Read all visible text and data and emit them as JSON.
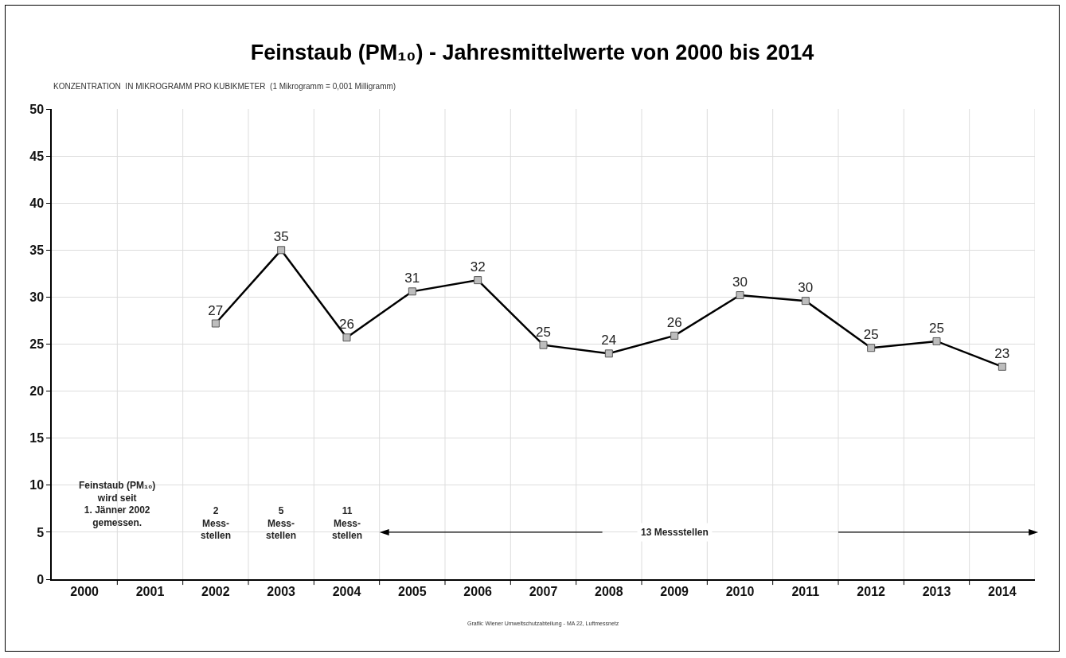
{
  "chart_data": {
    "type": "line",
    "title": "Feinstaub (PM₁₀) - Jahresmittelwerte von 2000 bis 2014",
    "subtitle": "KONZENTRATION  IN MIKROGRAMM PRO KUBIKMETER  (1 Mikrogramm = 0,001 Milligramm)",
    "categories": [
      "2000",
      "2001",
      "2002",
      "2003",
      "2004",
      "2005",
      "2006",
      "2007",
      "2008",
      "2009",
      "2010",
      "2011",
      "2012",
      "2013",
      "2014"
    ],
    "series": [
      {
        "color": "#000000",
        "values": [
          null,
          null,
          27.2,
          35.0,
          25.7,
          30.6,
          31.8,
          24.9,
          24.0,
          25.9,
          30.2,
          29.6,
          24.6,
          25.3,
          22.6
        ],
        "value_labels": [
          null,
          null,
          "27",
          "35",
          "26",
          "31",
          "32",
          "25",
          "24",
          "26",
          "30",
          "30",
          "25",
          "25",
          "23"
        ]
      }
    ],
    "ylim": [
      0,
      50
    ],
    "yticks": [
      0,
      5,
      10,
      15,
      20,
      25,
      30,
      35,
      40,
      45,
      50
    ],
    "grid": true,
    "marker": "square",
    "line_style": "solid",
    "annotations": [
      "Feinstaub (PM₁₀)\nwird seit\n1. Jänner 2002\ngemessen.",
      "2\nMess-\nstellen",
      "5\nMess-\nstellen",
      "11\nMess-\nstellen",
      "13 Messstellen",
      "Grafik: Wiener Umweltschutzabteilung - MA 22, Luftmessnetz"
    ]
  }
}
